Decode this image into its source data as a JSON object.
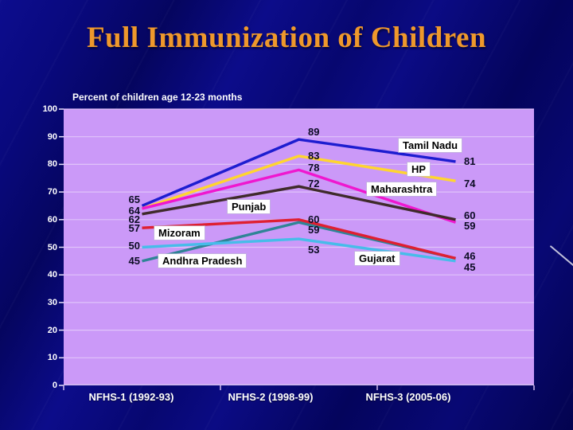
{
  "slide": {
    "title": "Full Immunization of Children",
    "subtitle": "Percent of children age 12-23 months"
  },
  "chart_data": {
    "type": "line",
    "title": "Percent of children age 12-23 months",
    "categories": [
      "NFHS-1 (1992-93)",
      "NFHS-2 (1998-99)",
      "NFHS-3 (2005-06)"
    ],
    "ylim": [
      0,
      100
    ],
    "ytick_step": 10,
    "grid": "horizontal",
    "legend": "inline-state-label-boxes",
    "series": [
      {
        "name": "Tamil Nadu",
        "color": "#1d1dd0",
        "values": [
          65,
          89,
          81
        ]
      },
      {
        "name": "HP",
        "color": "#ffd52f",
        "values": [
          64,
          83,
          74
        ]
      },
      {
        "name": "Maharashtra",
        "color": "#ef17cf",
        "values": [
          64,
          78,
          59
        ]
      },
      {
        "name": "Punjab",
        "color": "#3f2b2b",
        "values": [
          62,
          72,
          60
        ]
      },
      {
        "name": "Andhra Pradesh",
        "color": "#2f8496",
        "values": [
          45,
          59,
          46
        ]
      },
      {
        "name": "Gujarat",
        "color": "#47bce9",
        "values": [
          50,
          53,
          45
        ]
      },
      {
        "name": "Mizoram",
        "color": "#df1f31",
        "values": [
          57,
          60,
          46
        ]
      }
    ],
    "visible_point_labels": {
      "nfhs1": [
        "65",
        "64",
        "62",
        "57",
        "50",
        "45"
      ],
      "nfhs2": [
        "89",
        "83",
        "78",
        "72",
        "60",
        "59",
        "53"
      ],
      "nfhs3": [
        "81",
        "74",
        "60",
        "59",
        "46",
        "45"
      ]
    }
  },
  "colors": {
    "background": "#07076e",
    "title": "#ee982c",
    "plot_bg": "#cb99f8",
    "gridline": "#e0c3fa",
    "axis_line": "#d2bcf0",
    "axis_text": "#ffffff",
    "point_label_text": "#0c0c24"
  }
}
